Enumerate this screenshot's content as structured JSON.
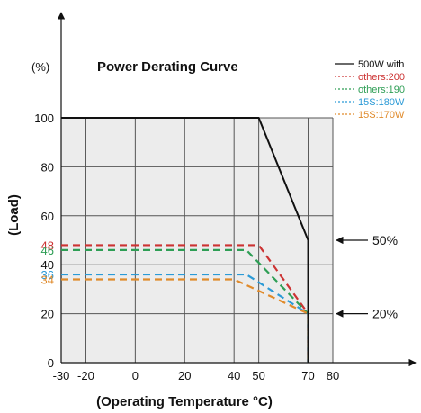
{
  "chart_data": {
    "type": "line",
    "title": "Power Derating Curve",
    "xlabel": "(Operating Temperature °C)",
    "ylabel": "(Load)",
    "y_unit": "(%)",
    "x_tick_labels": [
      "-30",
      "-20",
      "0",
      "20",
      "40",
      "50",
      "70",
      "80"
    ],
    "x_ticks": [
      -30,
      -20,
      0,
      20,
      40,
      50,
      70,
      80
    ],
    "y_ticks": [
      0,
      20,
      40,
      60,
      80,
      100
    ],
    "xlim": [
      -30,
      80
    ],
    "ylim": [
      0,
      100
    ],
    "grid": true,
    "legend_position": "top-right",
    "series": [
      {
        "name": "500W with",
        "color": "#111111",
        "style": "solid",
        "x": [
          -30,
          50,
          70,
          70
        ],
        "y": [
          100,
          100,
          50,
          0
        ]
      },
      {
        "name": "others:200",
        "color": "#cc3333",
        "style": "dashed",
        "x": [
          -30,
          50,
          70,
          70
        ],
        "y": [
          48,
          48,
          20,
          0
        ]
      },
      {
        "name": "others:190",
        "color": "#2e9e55",
        "style": "dashed",
        "x": [
          -30,
          45,
          70,
          70
        ],
        "y": [
          46,
          46,
          20,
          0
        ]
      },
      {
        "name": "15S:180W",
        "color": "#2b9ad6",
        "style": "dashed",
        "x": [
          -30,
          45,
          70,
          70
        ],
        "y": [
          36,
          36,
          20,
          0
        ]
      },
      {
        "name": "15S:170W",
        "color": "#e08a2a",
        "style": "dashed",
        "x": [
          -30,
          40,
          70,
          70
        ],
        "y": [
          34,
          34,
          20,
          0
        ]
      }
    ],
    "value_labels": [
      {
        "text": "48",
        "value": 48,
        "color": "#cc3333"
      },
      {
        "text": "46",
        "value": 46,
        "color": "#2e9e55"
      },
      {
        "text": "36",
        "value": 36,
        "color": "#2b9ad6"
      },
      {
        "text": "34",
        "value": 34,
        "color": "#e08a2a"
      }
    ],
    "annotations": [
      {
        "text": "50%",
        "value": 50
      },
      {
        "text": "20%",
        "value": 20
      }
    ]
  }
}
